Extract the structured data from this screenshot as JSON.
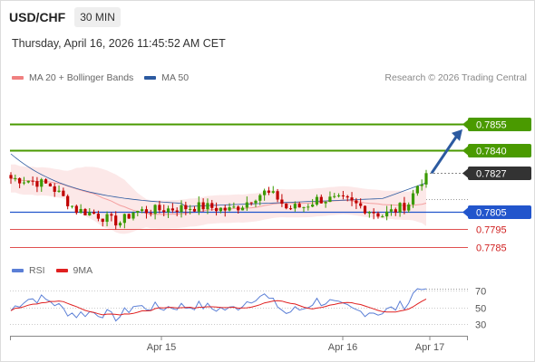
{
  "header": {
    "symbol": "USD/CHF",
    "timeframe": "30 MIN"
  },
  "datetime": "Thursday, April 16, 2026 11:45:52 AM CET",
  "legend": {
    "ma20": {
      "label": "MA 20 + Bollinger Bands",
      "color": "#f08080"
    },
    "ma50": {
      "label": "MA 50",
      "color": "#2c5aa0"
    }
  },
  "research": "Research © 2026 Trading Central",
  "rsi_legend": {
    "rsi": {
      "label": "RSI",
      "color": "#5b7fd6"
    },
    "ma9": {
      "label": "9MA",
      "color": "#e02020"
    }
  },
  "colors": {
    "up": "#3a9a00",
    "down": "#c00000",
    "green_level": "#4a9a00",
    "blue_level": "#2255cc",
    "red_level": "#e05050",
    "last": "#333333"
  },
  "chart_data": {
    "type": "candlestick",
    "x_ticks": [
      "Apr 15",
      "Apr 16",
      "Apr 17"
    ],
    "price_range": [
      0.778,
      0.7868
    ],
    "levels": [
      {
        "value": "0.7855",
        "kind": "resistance"
      },
      {
        "value": "0.7840",
        "kind": "resistance"
      },
      {
        "value": "0.7827",
        "kind": "last"
      },
      {
        "value": "0.7805",
        "kind": "pivot"
      },
      {
        "value": "0.7795",
        "kind": "support"
      },
      {
        "value": "0.7785",
        "kind": "support"
      }
    ],
    "rsi": {
      "range": [
        15,
        80
      ],
      "ticks": [
        "70",
        "50",
        "30"
      ]
    },
    "projection": {
      "from": 0.7827,
      "to": 0.7853
    }
  }
}
